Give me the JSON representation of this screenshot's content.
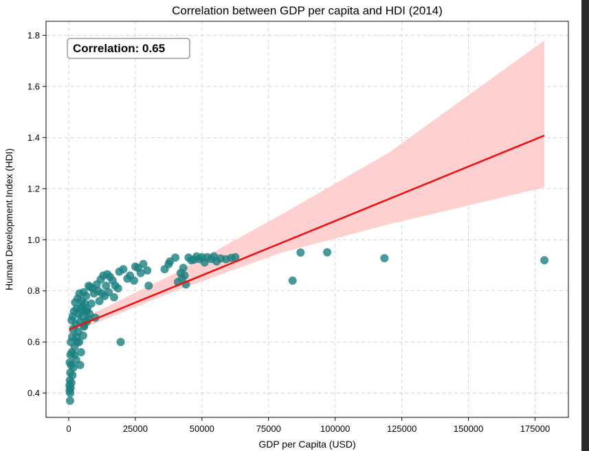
{
  "chart_data": {
    "type": "scatter",
    "title": "Correlation between GDP per capita and HDI (2014)",
    "xlabel": "GDP per Capita (USD)",
    "ylabel": "Human Development Index (HDI)",
    "xlim": [
      -8500,
      187500
    ],
    "ylim": [
      0.305,
      1.855
    ],
    "x_ticks": [
      0,
      25000,
      50000,
      75000,
      100000,
      125000,
      150000,
      175000
    ],
    "y_ticks": [
      0.4,
      0.6,
      0.8,
      1.0,
      1.2,
      1.4,
      1.6,
      1.8
    ],
    "x_tick_labels": [
      "0",
      "25000",
      "50000",
      "75000",
      "100000",
      "125000",
      "150000",
      "175000"
    ],
    "y_tick_labels": [
      "0.4",
      "0.6",
      "0.8",
      "1.0",
      "1.2",
      "1.4",
      "1.6",
      "1.8"
    ],
    "grid": true,
    "annotation": "Correlation: 0.65",
    "colors": {
      "points": "#1a8080",
      "regression_line": "#ee1111",
      "confidence_band": "#ffc8c8"
    },
    "regression": {
      "x": [
        300,
        178500
      ],
      "y": [
        0.649,
        1.408
      ]
    },
    "confidence_band": {
      "x": [
        300,
        40000,
        80000,
        120000,
        178500
      ],
      "lower": [
        0.632,
        0.8,
        0.95,
        1.06,
        1.205
      ],
      "upper": [
        0.666,
        0.87,
        1.1,
        1.34,
        1.78
      ]
    },
    "points": [
      [
        178500,
        0.92
      ],
      [
        118500,
        0.928
      ],
      [
        97000,
        0.951
      ],
      [
        87000,
        0.95
      ],
      [
        84000,
        0.84
      ],
      [
        62500,
        0.932
      ],
      [
        61000,
        0.929
      ],
      [
        59000,
        0.924
      ],
      [
        57000,
        0.927
      ],
      [
        55500,
        0.915
      ],
      [
        54500,
        0.935
      ],
      [
        53500,
        0.925
      ],
      [
        52000,
        0.932
      ],
      [
        51000,
        0.911
      ],
      [
        50000,
        0.932
      ],
      [
        49000,
        0.925
      ],
      [
        48000,
        0.935
      ],
      [
        47000,
        0.922
      ],
      [
        46000,
        0.92
      ],
      [
        45000,
        0.93
      ],
      [
        44000,
        0.825
      ],
      [
        43500,
        0.86
      ],
      [
        43000,
        0.89
      ],
      [
        42500,
        0.85
      ],
      [
        42000,
        0.87
      ],
      [
        41000,
        0.835
      ],
      [
        40000,
        0.93
      ],
      [
        38000,
        0.915
      ],
      [
        36000,
        0.885
      ],
      [
        37500,
        0.905
      ],
      [
        30000,
        0.82
      ],
      [
        29500,
        0.88
      ],
      [
        28000,
        0.905
      ],
      [
        27000,
        0.87
      ],
      [
        26000,
        0.89
      ],
      [
        25000,
        0.895
      ],
      [
        24500,
        0.84
      ],
      [
        23000,
        0.86
      ],
      [
        22000,
        0.848
      ],
      [
        20500,
        0.885
      ],
      [
        19500,
        0.6
      ],
      [
        19000,
        0.875
      ],
      [
        18500,
        0.81
      ],
      [
        17500,
        0.82
      ],
      [
        17000,
        0.775
      ],
      [
        16500,
        0.84
      ],
      [
        15500,
        0.855
      ],
      [
        15000,
        0.795
      ],
      [
        14500,
        0.865
      ],
      [
        14000,
        0.82
      ],
      [
        13500,
        0.78
      ],
      [
        13000,
        0.86
      ],
      [
        12500,
        0.79
      ],
      [
        12000,
        0.845
      ],
      [
        11500,
        0.76
      ],
      [
        11000,
        0.8
      ],
      [
        10500,
        0.825
      ],
      [
        10000,
        0.695
      ],
      [
        9500,
        0.79
      ],
      [
        9000,
        0.81
      ],
      [
        8500,
        0.75
      ],
      [
        8000,
        0.815
      ],
      [
        7800,
        0.71
      ],
      [
        7500,
        0.82
      ],
      [
        7000,
        0.73
      ],
      [
        6800,
        0.68
      ],
      [
        6500,
        0.78
      ],
      [
        6200,
        0.72
      ],
      [
        6000,
        0.75
      ],
      [
        5800,
        0.66
      ],
      [
        5600,
        0.795
      ],
      [
        5400,
        0.625
      ],
      [
        5200,
        0.74
      ],
      [
        5000,
        0.7
      ],
      [
        4800,
        0.76
      ],
      [
        4600,
        0.56
      ],
      [
        4400,
        0.73
      ],
      [
        4200,
        0.68
      ],
      [
        4000,
        0.79
      ],
      [
        3800,
        0.71
      ],
      [
        3600,
        0.64
      ],
      [
        3400,
        0.77
      ],
      [
        3200,
        0.6
      ],
      [
        3000,
        0.73
      ],
      [
        2800,
        0.53
      ],
      [
        2600,
        0.67
      ],
      [
        2400,
        0.755
      ],
      [
        2200,
        0.58
      ],
      [
        2000,
        0.72
      ],
      [
        1800,
        0.5
      ],
      [
        1600,
        0.65
      ],
      [
        1500,
        0.7
      ],
      [
        1400,
        0.47
      ],
      [
        1300,
        0.62
      ],
      [
        1200,
        0.56
      ],
      [
        1100,
        0.685
      ],
      [
        1000,
        0.44
      ],
      [
        900,
        0.51
      ],
      [
        800,
        0.6
      ],
      [
        700,
        0.42
      ],
      [
        650,
        0.55
      ],
      [
        600,
        0.48
      ],
      [
        550,
        0.4
      ],
      [
        500,
        0.37
      ],
      [
        450,
        0.45
      ],
      [
        400,
        0.52
      ],
      [
        350,
        0.41
      ],
      [
        300,
        0.43
      ],
      [
        4300,
        0.51
      ],
      [
        5700,
        0.665
      ],
      [
        6600,
        0.72
      ],
      [
        7300,
        0.69
      ],
      [
        3900,
        0.6
      ],
      [
        2900,
        0.62
      ],
      [
        2100,
        0.55
      ]
    ]
  }
}
